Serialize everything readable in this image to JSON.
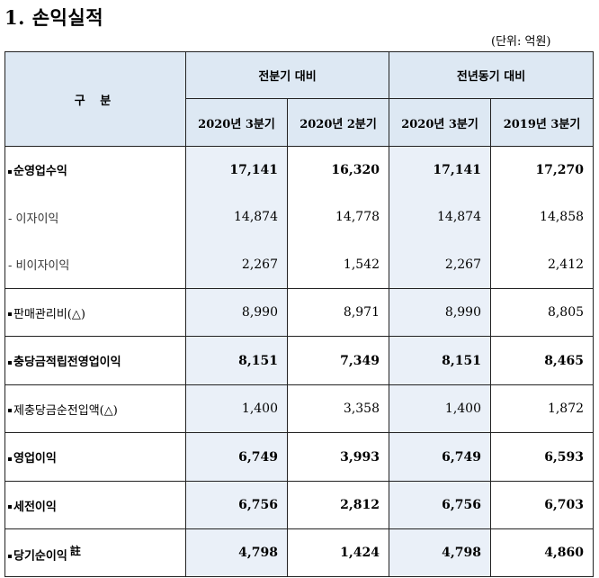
{
  "title": "1. 손익실적",
  "unit": "(단위: 억원)",
  "header": {
    "category": "구 분",
    "group1": "전분기 대비",
    "group2": "전년동기 대비",
    "columns": [
      "2020년 3분기",
      "2020년 2분기",
      "2020년 3분기",
      "2019년 3분기"
    ]
  },
  "rows": [
    {
      "label": "순영업수익",
      "bullet": true,
      "bold": true,
      "values": [
        "17,141",
        "16,320",
        "17,141",
        "17,270"
      ]
    },
    {
      "label": "- 이자이익",
      "bullet": false,
      "bold": false,
      "values": [
        "14,874",
        "14,778",
        "14,874",
        "14,858"
      ]
    },
    {
      "label": "- 비이자이익",
      "bullet": false,
      "bold": false,
      "values": [
        "2,267",
        "1,542",
        "2,267",
        "2,412"
      ]
    },
    {
      "label": "판매관리비(△)",
      "bullet": true,
      "bold": false,
      "values": [
        "8,990",
        "8,971",
        "8,990",
        "8,805"
      ]
    },
    {
      "label": "충당금적립전영업이익",
      "bullet": true,
      "bold": true,
      "values": [
        "8,151",
        "7,349",
        "8,151",
        "8,465"
      ]
    },
    {
      "label": "제충당금순전입액(△)",
      "bullet": true,
      "bold": false,
      "values": [
        "1,400",
        "3,358",
        "1,400",
        "1,872"
      ]
    },
    {
      "label": "영업이익",
      "bullet": true,
      "bold": true,
      "values": [
        "6,749",
        "3,993",
        "6,749",
        "6,593"
      ]
    },
    {
      "label": "세전이익",
      "bullet": true,
      "bold": true,
      "values": [
        "6,756",
        "2,812",
        "6,756",
        "6,703"
      ]
    },
    {
      "label": "당기순이익",
      "bullet": true,
      "bold": true,
      "note": "註",
      "values": [
        "4,798",
        "1,424",
        "4,798",
        "4,860"
      ]
    }
  ]
}
